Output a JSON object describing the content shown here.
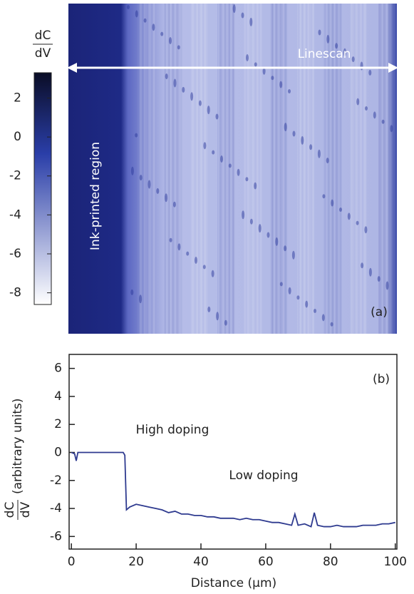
{
  "chart_data": [
    {
      "type": "heatmap",
      "colorbar_label_top": "dC",
      "colorbar_label_bottom": "dV",
      "colorbar_lim": [
        -8.6,
        3.3
      ],
      "colorbar_ticks": [
        2,
        0,
        -2,
        -4,
        -6,
        -8
      ],
      "colors": [
        "#0a0d26",
        "#2a3ea8",
        "#ffffff"
      ],
      "annotations": [
        "Linescan",
        "Ink-printed region",
        "(a)"
      ]
    },
    {
      "type": "line",
      "x": [
        0,
        1,
        1.5,
        2,
        4,
        6,
        8,
        10,
        12,
        14,
        16,
        16.5,
        17,
        18,
        20,
        22,
        24,
        26,
        28,
        30,
        32,
        34,
        36,
        38,
        40,
        42,
        44,
        46,
        48,
        50,
        52,
        54,
        56,
        58,
        60,
        62,
        64,
        66,
        68,
        69,
        70,
        72,
        74,
        75,
        76,
        78,
        80,
        82,
        84,
        86,
        88,
        90,
        92,
        94,
        96,
        98,
        100
      ],
      "series": [
        {
          "color": "#2e3a8f",
          "values": [
            0,
            -0.1,
            -0.6,
            0,
            0,
            0,
            0,
            0,
            0,
            0,
            0,
            -0.2,
            -4.1,
            -3.9,
            -3.7,
            -3.8,
            -3.9,
            -4.0,
            -4.1,
            -4.3,
            -4.2,
            -4.4,
            -4.4,
            -4.5,
            -4.5,
            -4.6,
            -4.6,
            -4.7,
            -4.7,
            -4.7,
            -4.8,
            -4.7,
            -4.8,
            -4.8,
            -4.9,
            -5.0,
            -5.0,
            -5.1,
            -5.2,
            -4.4,
            -5.2,
            -5.1,
            -5.3,
            -4.3,
            -5.2,
            -5.3,
            -5.3,
            -5.2,
            -5.3,
            -5.3,
            -5.3,
            -5.2,
            -5.2,
            -5.2,
            -5.1,
            -5.1,
            -5.0
          ]
        }
      ],
      "xlim": [
        -0.7,
        100.5
      ],
      "ylim": [
        -6.9,
        7
      ],
      "xticks": [
        0,
        20,
        40,
        60,
        80,
        100
      ],
      "yticks": [
        -6,
        -4,
        -2,
        0,
        2,
        4,
        6
      ],
      "xlabel": "Distance (μm)",
      "ylabel_top": "dC",
      "ylabel_bottom": "dV",
      "ylabel_units": "(arbitrary units)",
      "annotations": [
        "High doping",
        "Low doping",
        "(b)"
      ]
    }
  ]
}
